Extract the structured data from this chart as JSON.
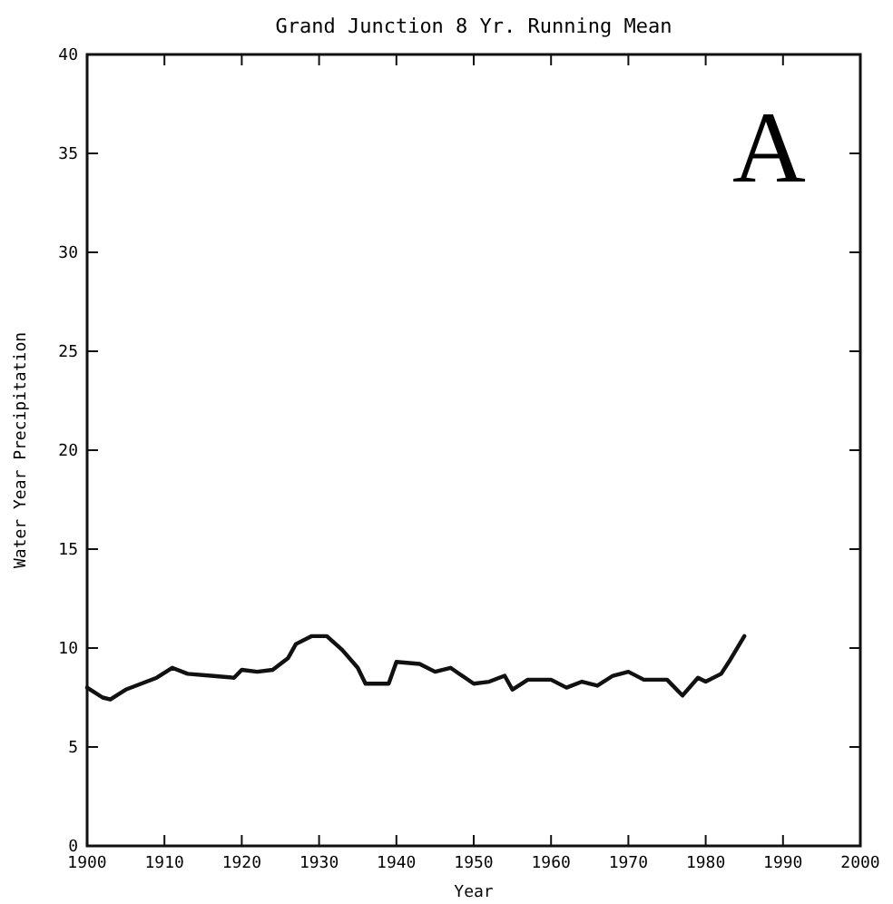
{
  "chart_data": {
    "type": "line",
    "title": "Grand Junction  8 Yr. Running Mean",
    "xlabel": "Year",
    "ylabel": "Water Year Precipitation",
    "annotations": [
      "A"
    ],
    "x": [
      1900,
      1902,
      1903,
      1905,
      1907,
      1909,
      1911,
      1913,
      1916,
      1919,
      1920,
      1922,
      1924,
      1926,
      1927,
      1929,
      1931,
      1933,
      1935,
      1936,
      1939,
      1940,
      1943,
      1945,
      1947,
      1950,
      1952,
      1954,
      1955,
      1957,
      1960,
      1962,
      1964,
      1966,
      1968,
      1970,
      1972,
      1975,
      1977,
      1979,
      1980,
      1982,
      1983,
      1985
    ],
    "series": [
      {
        "color": "#111111",
        "values": [
          8.0,
          7.5,
          7.4,
          7.9,
          8.2,
          8.5,
          9.0,
          8.7,
          8.6,
          8.5,
          8.9,
          8.8,
          8.9,
          9.5,
          10.2,
          10.6,
          10.6,
          9.9,
          9.0,
          8.2,
          8.2,
          9.3,
          9.2,
          8.8,
          9.0,
          8.2,
          8.3,
          8.6,
          7.9,
          8.4,
          8.4,
          8.0,
          8.3,
          8.1,
          8.6,
          8.8,
          8.4,
          8.4,
          7.6,
          8.5,
          8.3,
          8.7,
          9.3,
          10.6
        ]
      }
    ],
    "xlim": [
      1900,
      2000
    ],
    "xticks": [
      1900,
      1910,
      1920,
      1930,
      1940,
      1950,
      1960,
      1970,
      1980,
      1990,
      2000
    ],
    "ylim": [
      0,
      40
    ],
    "yticks": [
      0,
      5,
      10,
      15,
      20,
      25,
      30,
      35,
      40
    ],
    "marker": "none",
    "line_style": "solid"
  }
}
